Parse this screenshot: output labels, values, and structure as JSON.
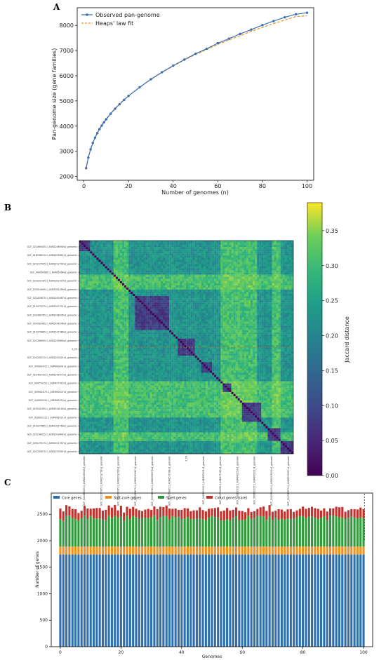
{
  "chart_data": [
    {
      "panel": "A",
      "type": "line",
      "xlabel": "Number of genomes (n)",
      "ylabel": "Pan-genome size (gene families)",
      "xlim": [
        -3,
        103
      ],
      "ylim": [
        1850,
        8700
      ],
      "xticks": [
        0,
        20,
        40,
        60,
        80,
        100
      ],
      "yticks": [
        2000,
        3000,
        4000,
        5000,
        6000,
        7000,
        8000
      ],
      "legend_position": "top-left",
      "grid": false,
      "series": [
        {
          "name": "Observed pan-genome",
          "style": "line-markers",
          "color": "#3a6fb5",
          "x": [
            1,
            2,
            3,
            4,
            5,
            6,
            7,
            8,
            9,
            10,
            12,
            14,
            16,
            18,
            20,
            25,
            30,
            35,
            40,
            45,
            50,
            55,
            60,
            65,
            70,
            75,
            80,
            85,
            90,
            95,
            100
          ],
          "y": [
            2330,
            2750,
            3080,
            3330,
            3540,
            3720,
            3880,
            4020,
            4150,
            4270,
            4490,
            4690,
            4870,
            5040,
            5200,
            5540,
            5860,
            6140,
            6400,
            6640,
            6870,
            7070,
            7290,
            7470,
            7660,
            7830,
            8010,
            8170,
            8320,
            8440,
            8500
          ]
        },
        {
          "name": "Heaps' law fit",
          "style": "dashed",
          "color": "#e8942a",
          "x": [
            1,
            2,
            3,
            5,
            8,
            12,
            16,
            20,
            25,
            30,
            35,
            40,
            45,
            50,
            55,
            60,
            65,
            70,
            75,
            80,
            85,
            90,
            95,
            100
          ],
          "y": [
            2330,
            2780,
            3100,
            3560,
            4050,
            4520,
            4890,
            5200,
            5540,
            5850,
            6130,
            6380,
            6620,
            6840,
            7040,
            7240,
            7420,
            7590,
            7760,
            7920,
            8070,
            8210,
            8350,
            8380
          ]
        }
      ]
    },
    {
      "panel": "B",
      "type": "heatmap",
      "n": 100,
      "colorbar_label": "Jaccard distance",
      "colorbar_ticks": [
        0.0,
        0.05,
        0.1,
        0.15,
        0.2,
        0.25,
        0.3,
        0.35
      ],
      "colorbar_range": [
        0.0,
        0.39
      ],
      "colormap": "viridis",
      "highlight_index": 50,
      "row_labels": [
        "GCF_022469405.1_ASM2246940v1_genomic",
        "GCF_018336515.1_ASM1833651v1_genomic",
        "GCF_022127005.1_ASM2212700v1_genomic",
        "GCF_000954985.2_ASM95498v2_genomic",
        "GCF_023222165.1_ASM2322216v1_genomic",
        "GCF_033910995.1_ASM3391099v1_genomic",
        "GCF_022404675.1_ASM2240467v1_genomic",
        "GCF_015473375.1_ASM1547337v1_genomic",
        "GCF_020380765.1_ASM2038076v1_genomic",
        "GCF_024342465.1_ASM2434246v1_genomic",
        "GCF_015379885.1_ASM1537988v1_genomic",
        "GCF_022306905.1_ASM2230690v1_genomic",
        "S_53",
        "GCF_022430215.1_ASM2243021v1_genomic",
        "GCF_009902415.1_ASM990241v1_genomic",
        "GCF_022405735.1_ASM2240573v1_genomic",
        "GCF_004774155.1_ASM477415v1_genomic",
        "GCF_009902475.1_ASM990247v1_genomic",
        "GCF_009902535.1_ASM990253v1_genomic",
        "GCF_025161095.1_ASM2516109v1_genomic",
        "GCF_009902215.1_ASM990221v1_genomic",
        "GCF_013227665.1_ASM1322766v1_genomic",
        "GCF_020198425.1_ASM2019842v1_genomic",
        "GCF_020170575.1_ASM2017057v1_genomic",
        "GCF_022330975.1_ASM2233097v1_genomic"
      ],
      "col_labels": [
        "GCF_022469405.1_ASM2246940v1_genomic",
        "GCF_022127005.1_ASM2212700v1_genomic",
        "GCF_023222165.1_ASM2322216v1_genomic",
        "GCF_022404675.1_ASM2240467v1_genomic",
        "GCF_020380765.1_ASM2038076v1_genomic",
        "GCF_015379885.1_ASM1537988v1_genomic",
        "S_53",
        "GCF_009902415.1_ASM990241v1_genomic",
        "GCF_004774155.1_ASM477415v1_genomic",
        "GCF_009902535.1_ASM990253v1_genomic",
        "GCF_009902215.1_ASM990221v1_genomic",
        "GCF_020198425.1_ASM2019842v1_genomic",
        "GCF_022330975.1_ASM2233097v1_genomic"
      ],
      "clusters": [
        {
          "start": 0,
          "end": 4
        },
        {
          "start": 26,
          "end": 41
        },
        {
          "start": 46,
          "end": 53
        },
        {
          "start": 57,
          "end": 61
        },
        {
          "start": 67,
          "end": 70
        },
        {
          "start": 76,
          "end": 84
        },
        {
          "start": 88,
          "end": 93
        },
        {
          "start": 94,
          "end": 99
        }
      ]
    },
    {
      "panel": "C",
      "type": "bar",
      "stacked": true,
      "xlabel": "Genomes",
      "ylabel": "Number of genes",
      "xticks": [
        0,
        20,
        40,
        60,
        80,
        100
      ],
      "yticks": [
        0,
        500,
        1000,
        1500,
        2000,
        2500
      ],
      "ylim": [
        0,
        2900
      ],
      "xlim": [
        -3,
        103
      ],
      "legend_position": "top-left",
      "n_bars": 101,
      "series": [
        {
          "name": "Core genes",
          "color": "#2e6fae",
          "value": 1740
        },
        {
          "name": "Soft-core genes",
          "color": "#f0901f",
          "value": 150
        },
        {
          "name": "Shell genes",
          "color": "#2f9a3a",
          "base": 540,
          "variation": 100
        },
        {
          "name": "Cloud genes (rare)",
          "color": "#c4302b",
          "base": 170,
          "variation": 80
        }
      ]
    }
  ],
  "labels": {
    "panel_a": "A",
    "panel_b": "B",
    "panel_c": "C"
  }
}
